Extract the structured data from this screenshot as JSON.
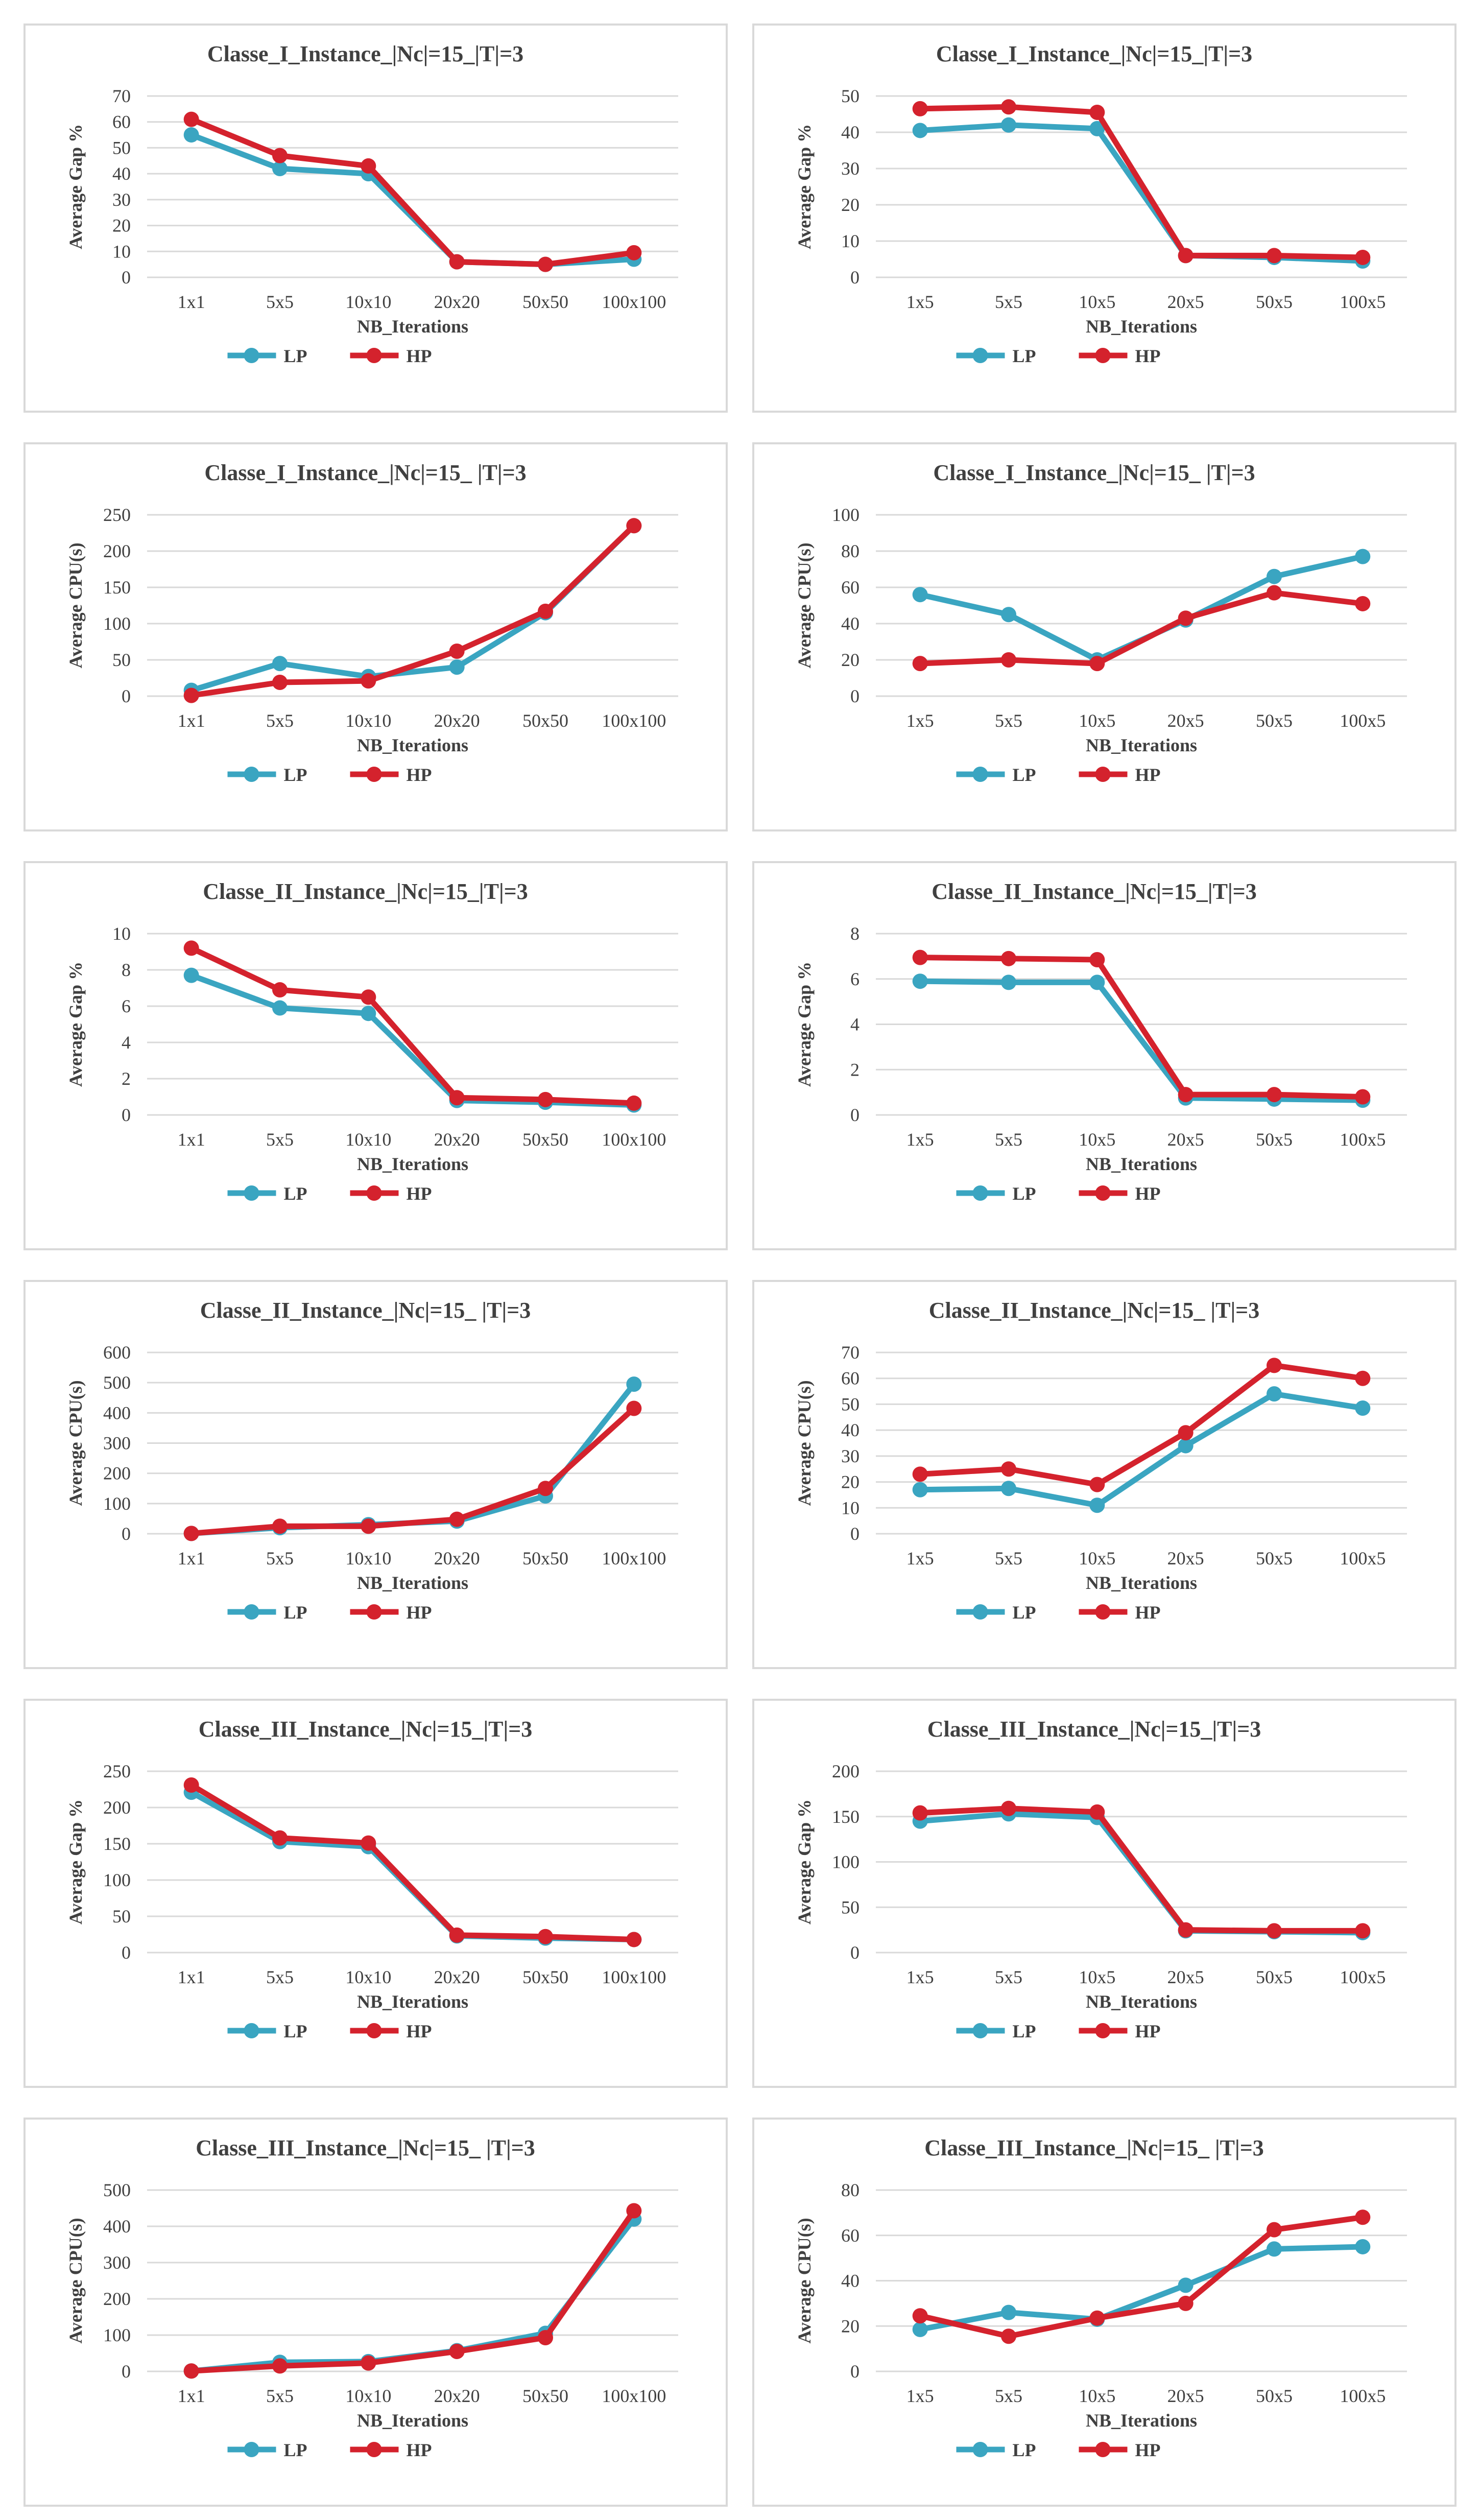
{
  "colors": {
    "LP": "#3aa5c1",
    "HP": "#d4222d",
    "grid": "#d9d9d9",
    "text": "#404040",
    "frame": "#d9d9d9"
  },
  "chart_data": [
    {
      "type": "line",
      "title": "Classe_I_Instance_|Nc|=15_|T|=3",
      "xlabel": "NB_Iterations",
      "ylabel": "Average Gap %",
      "categories": [
        "1x1",
        "5x5",
        "10x10",
        "20x20",
        "50x50",
        "100x100"
      ],
      "ylim": [
        0,
        70
      ],
      "yticks": [
        0,
        10,
        20,
        30,
        40,
        50,
        60,
        70
      ],
      "series": [
        {
          "name": "LP",
          "values": [
            55,
            42,
            40,
            6,
            5,
            7
          ]
        },
        {
          "name": "HP",
          "values": [
            61,
            47,
            43,
            6,
            5,
            9.5
          ]
        }
      ]
    },
    {
      "type": "line",
      "title": "Classe_I_Instance_|Nc|=15_|T|=3",
      "xlabel": "NB_Iterations",
      "ylabel": "Average Gap %",
      "categories": [
        "1x5",
        "5x5",
        "10x5",
        "20x5",
        "50x5",
        "100x5"
      ],
      "ylim": [
        0,
        50
      ],
      "yticks": [
        0,
        10,
        20,
        30,
        40,
        50
      ],
      "series": [
        {
          "name": "LP",
          "values": [
            40.5,
            42,
            41,
            6,
            5.5,
            4.5
          ]
        },
        {
          "name": "HP",
          "values": [
            46.5,
            47,
            45.5,
            6,
            6,
            5.5
          ]
        }
      ]
    },
    {
      "type": "line",
      "title": "Classe_I_Instance_|Nc|=15_ |T|=3",
      "xlabel": "NB_Iterations",
      "ylabel": "Average  CPU(s)",
      "categories": [
        "1x1",
        "5x5",
        "10x10",
        "20x20",
        "50x50",
        "100x100"
      ],
      "ylim": [
        0,
        250
      ],
      "yticks": [
        0,
        50,
        100,
        150,
        200,
        250
      ],
      "series": [
        {
          "name": "LP",
          "values": [
            8,
            45,
            27,
            40,
            115,
            235
          ]
        },
        {
          "name": "HP",
          "values": [
            1,
            19,
            21,
            62,
            117,
            235
          ]
        }
      ]
    },
    {
      "type": "line",
      "title": "Classe_I_Instance_|Nc|=15_ |T|=3",
      "xlabel": "NB_Iterations",
      "ylabel": "Average  CPU(s)",
      "categories": [
        "1x5",
        "5x5",
        "10x5",
        "20x5",
        "50x5",
        "100x5"
      ],
      "ylim": [
        0,
        100
      ],
      "yticks": [
        0,
        20,
        40,
        60,
        80,
        100
      ],
      "series": [
        {
          "name": "LP",
          "values": [
            56,
            45,
            20,
            42,
            66,
            77
          ]
        },
        {
          "name": "HP",
          "values": [
            18,
            20,
            18,
            43,
            57,
            51
          ]
        }
      ]
    },
    {
      "type": "line",
      "title": "Classe_II_Instance_|Nc|=15_|T|=3",
      "xlabel": "NB_Iterations",
      "ylabel": "Average Gap %",
      "categories": [
        "1x1",
        "5x5",
        "10x10",
        "20x20",
        "50x50",
        "100x100"
      ],
      "ylim": [
        0,
        10
      ],
      "yticks": [
        0,
        2,
        4,
        6,
        8,
        10
      ],
      "series": [
        {
          "name": "LP",
          "values": [
            7.7,
            5.9,
            5.6,
            0.8,
            0.7,
            0.55
          ]
        },
        {
          "name": "HP",
          "values": [
            9.2,
            6.9,
            6.5,
            0.95,
            0.85,
            0.65
          ]
        }
      ]
    },
    {
      "type": "line",
      "title": "Classe_II_Instance_|Nc|=15_|T|=3",
      "xlabel": "NB_Iterations",
      "ylabel": "Average Gap %",
      "categories": [
        "1x5",
        "5x5",
        "10x5",
        "20x5",
        "50x5",
        "100x5"
      ],
      "ylim": [
        0,
        8
      ],
      "yticks": [
        0,
        2,
        4,
        6,
        8
      ],
      "series": [
        {
          "name": "LP",
          "values": [
            5.9,
            5.85,
            5.85,
            0.75,
            0.7,
            0.65
          ]
        },
        {
          "name": "HP",
          "values": [
            6.95,
            6.9,
            6.85,
            0.9,
            0.9,
            0.8
          ]
        }
      ]
    },
    {
      "type": "line",
      "title": "Classe_II_Instance_|Nc|=15_ |T|=3",
      "xlabel": "NB_Iterations",
      "ylabel": "Average  CPU(s)",
      "categories": [
        "1x1",
        "5x5",
        "10x10",
        "20x20",
        "50x50",
        "100x100"
      ],
      "ylim": [
        0,
        600
      ],
      "yticks": [
        0,
        100,
        200,
        300,
        400,
        500,
        600
      ],
      "series": [
        {
          "name": "LP",
          "values": [
            1,
            20,
            30,
            42,
            125,
            495
          ]
        },
        {
          "name": "HP",
          "values": [
            1,
            25,
            25,
            48,
            150,
            415
          ]
        }
      ]
    },
    {
      "type": "line",
      "title": "Classe_II_Instance_|Nc|=15_ |T|=3",
      "xlabel": "NB_Iterations",
      "ylabel": "Average  CPU(s)",
      "categories": [
        "1x5",
        "5x5",
        "10x5",
        "20x5",
        "50x5",
        "100x5"
      ],
      "ylim": [
        0,
        70
      ],
      "yticks": [
        0,
        10,
        20,
        30,
        40,
        50,
        60,
        70
      ],
      "series": [
        {
          "name": "LP",
          "values": [
            17,
            17.5,
            11,
            34,
            54,
            48.5
          ]
        },
        {
          "name": "HP",
          "values": [
            23,
            25,
            19,
            39,
            65,
            60
          ]
        }
      ]
    },
    {
      "type": "line",
      "title": "Classe_III_Instance_|Nc|=15_|T|=3",
      "xlabel": "NB_Iterations",
      "ylabel": "Average Gap %",
      "categories": [
        "1x1",
        "5x5",
        "10x10",
        "20x20",
        "50x50",
        "100x100"
      ],
      "ylim": [
        0,
        250
      ],
      "yticks": [
        0,
        50,
        100,
        150,
        200,
        250
      ],
      "series": [
        {
          "name": "LP",
          "values": [
            221,
            153,
            146,
            23,
            20,
            18
          ]
        },
        {
          "name": "HP",
          "values": [
            231,
            158,
            151,
            24,
            22,
            18
          ]
        }
      ]
    },
    {
      "type": "line",
      "title": "Classe_III_Instance_|Nc|=15_|T|=3",
      "xlabel": "NB_Iterations",
      "ylabel": "Average Gap %",
      "categories": [
        "1x5",
        "5x5",
        "10x5",
        "20x5",
        "50x5",
        "100x5"
      ],
      "ylim": [
        0,
        200
      ],
      "yticks": [
        0,
        50,
        100,
        150,
        200
      ],
      "series": [
        {
          "name": "LP",
          "values": [
            145,
            153,
            149,
            24,
            23,
            22
          ]
        },
        {
          "name": "HP",
          "values": [
            154,
            159,
            155,
            25,
            24,
            24
          ]
        }
      ]
    },
    {
      "type": "line",
      "title": "Classe_III_Instance_|Nc|=15_ |T|=3",
      "xlabel": "NB_Iterations",
      "ylabel": "Average  CPU(s)",
      "categories": [
        "1x1",
        "5x5",
        "10x10",
        "20x20",
        "50x50",
        "100x100"
      ],
      "ylim": [
        0,
        500
      ],
      "yticks": [
        0,
        100,
        200,
        300,
        400,
        500
      ],
      "series": [
        {
          "name": "LP",
          "values": [
            1,
            25,
            27,
            57,
            105,
            420
          ]
        },
        {
          "name": "HP",
          "values": [
            1,
            15,
            23,
            55,
            93,
            443
          ]
        }
      ]
    },
    {
      "type": "line",
      "title": "Classe_III_Instance_|Nc|=15_ |T|=3",
      "xlabel": "NB_Iterations",
      "ylabel": "Average  CPU(s)",
      "categories": [
        "1x5",
        "5x5",
        "10x5",
        "20x5",
        "50x5",
        "100x5"
      ],
      "ylim": [
        0,
        80
      ],
      "yticks": [
        0,
        20,
        40,
        60,
        80
      ],
      "series": [
        {
          "name": "LP",
          "values": [
            18.5,
            26,
            23,
            38,
            54,
            55
          ]
        },
        {
          "name": "HP",
          "values": [
            24.5,
            15.5,
            23.5,
            30,
            62.5,
            68
          ]
        }
      ]
    }
  ]
}
